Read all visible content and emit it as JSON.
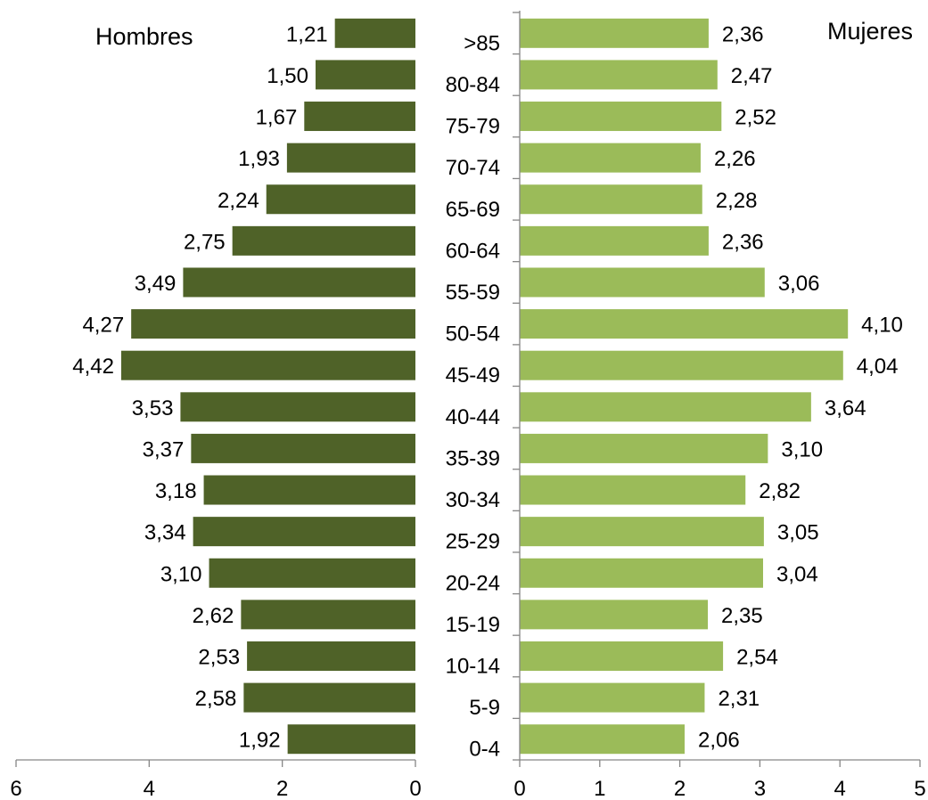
{
  "chart_data": {
    "type": "bar",
    "categories": [
      ">85",
      "80-84",
      "75-79",
      "70-74",
      "65-69",
      "60-64",
      "55-59",
      "50-54",
      "45-49",
      "40-44",
      "35-39",
      "30-34",
      "25-29",
      "20-24",
      "15-19",
      "10-14",
      "5-9",
      "0-4"
    ],
    "series": [
      {
        "name": "Hombres",
        "color": "#4f6228",
        "values": [
          1.21,
          1.5,
          1.67,
          1.93,
          2.24,
          2.75,
          3.49,
          4.27,
          4.42,
          3.53,
          3.37,
          3.18,
          3.34,
          3.1,
          2.62,
          2.53,
          2.58,
          1.92
        ],
        "labels": [
          "1,21",
          "1,50",
          "1,67",
          "1,93",
          "2,24",
          "2,75",
          "3,49",
          "4,27",
          "4,42",
          "3,53",
          "3,37",
          "3,18",
          "3,34",
          "3,10",
          "2,62",
          "2,53",
          "2,58",
          "1,92"
        ],
        "xlim": [
          6,
          0
        ],
        "ticks": [
          "6",
          "4",
          "2",
          "0"
        ]
      },
      {
        "name": "Mujeres",
        "color": "#9bbb59",
        "values": [
          2.36,
          2.47,
          2.52,
          2.26,
          2.28,
          2.36,
          3.06,
          4.1,
          4.04,
          3.64,
          3.1,
          2.82,
          3.05,
          3.04,
          2.35,
          2.54,
          2.31,
          2.06
        ],
        "labels": [
          "2,36",
          "2,47",
          "2,52",
          "2,26",
          "2,28",
          "2,36",
          "3,06",
          "4,10",
          "4,04",
          "3,64",
          "3,10",
          "2,82",
          "3,05",
          "3,04",
          "2,35",
          "2,54",
          "2,31",
          "2,06"
        ],
        "xlim": [
          0,
          5
        ],
        "ticks": [
          "0",
          "1",
          "2",
          "3",
          "4",
          "5"
        ]
      }
    ],
    "titles": {
      "left": "Hombres",
      "right": "Mujeres"
    },
    "legend": "none",
    "grid": false
  }
}
